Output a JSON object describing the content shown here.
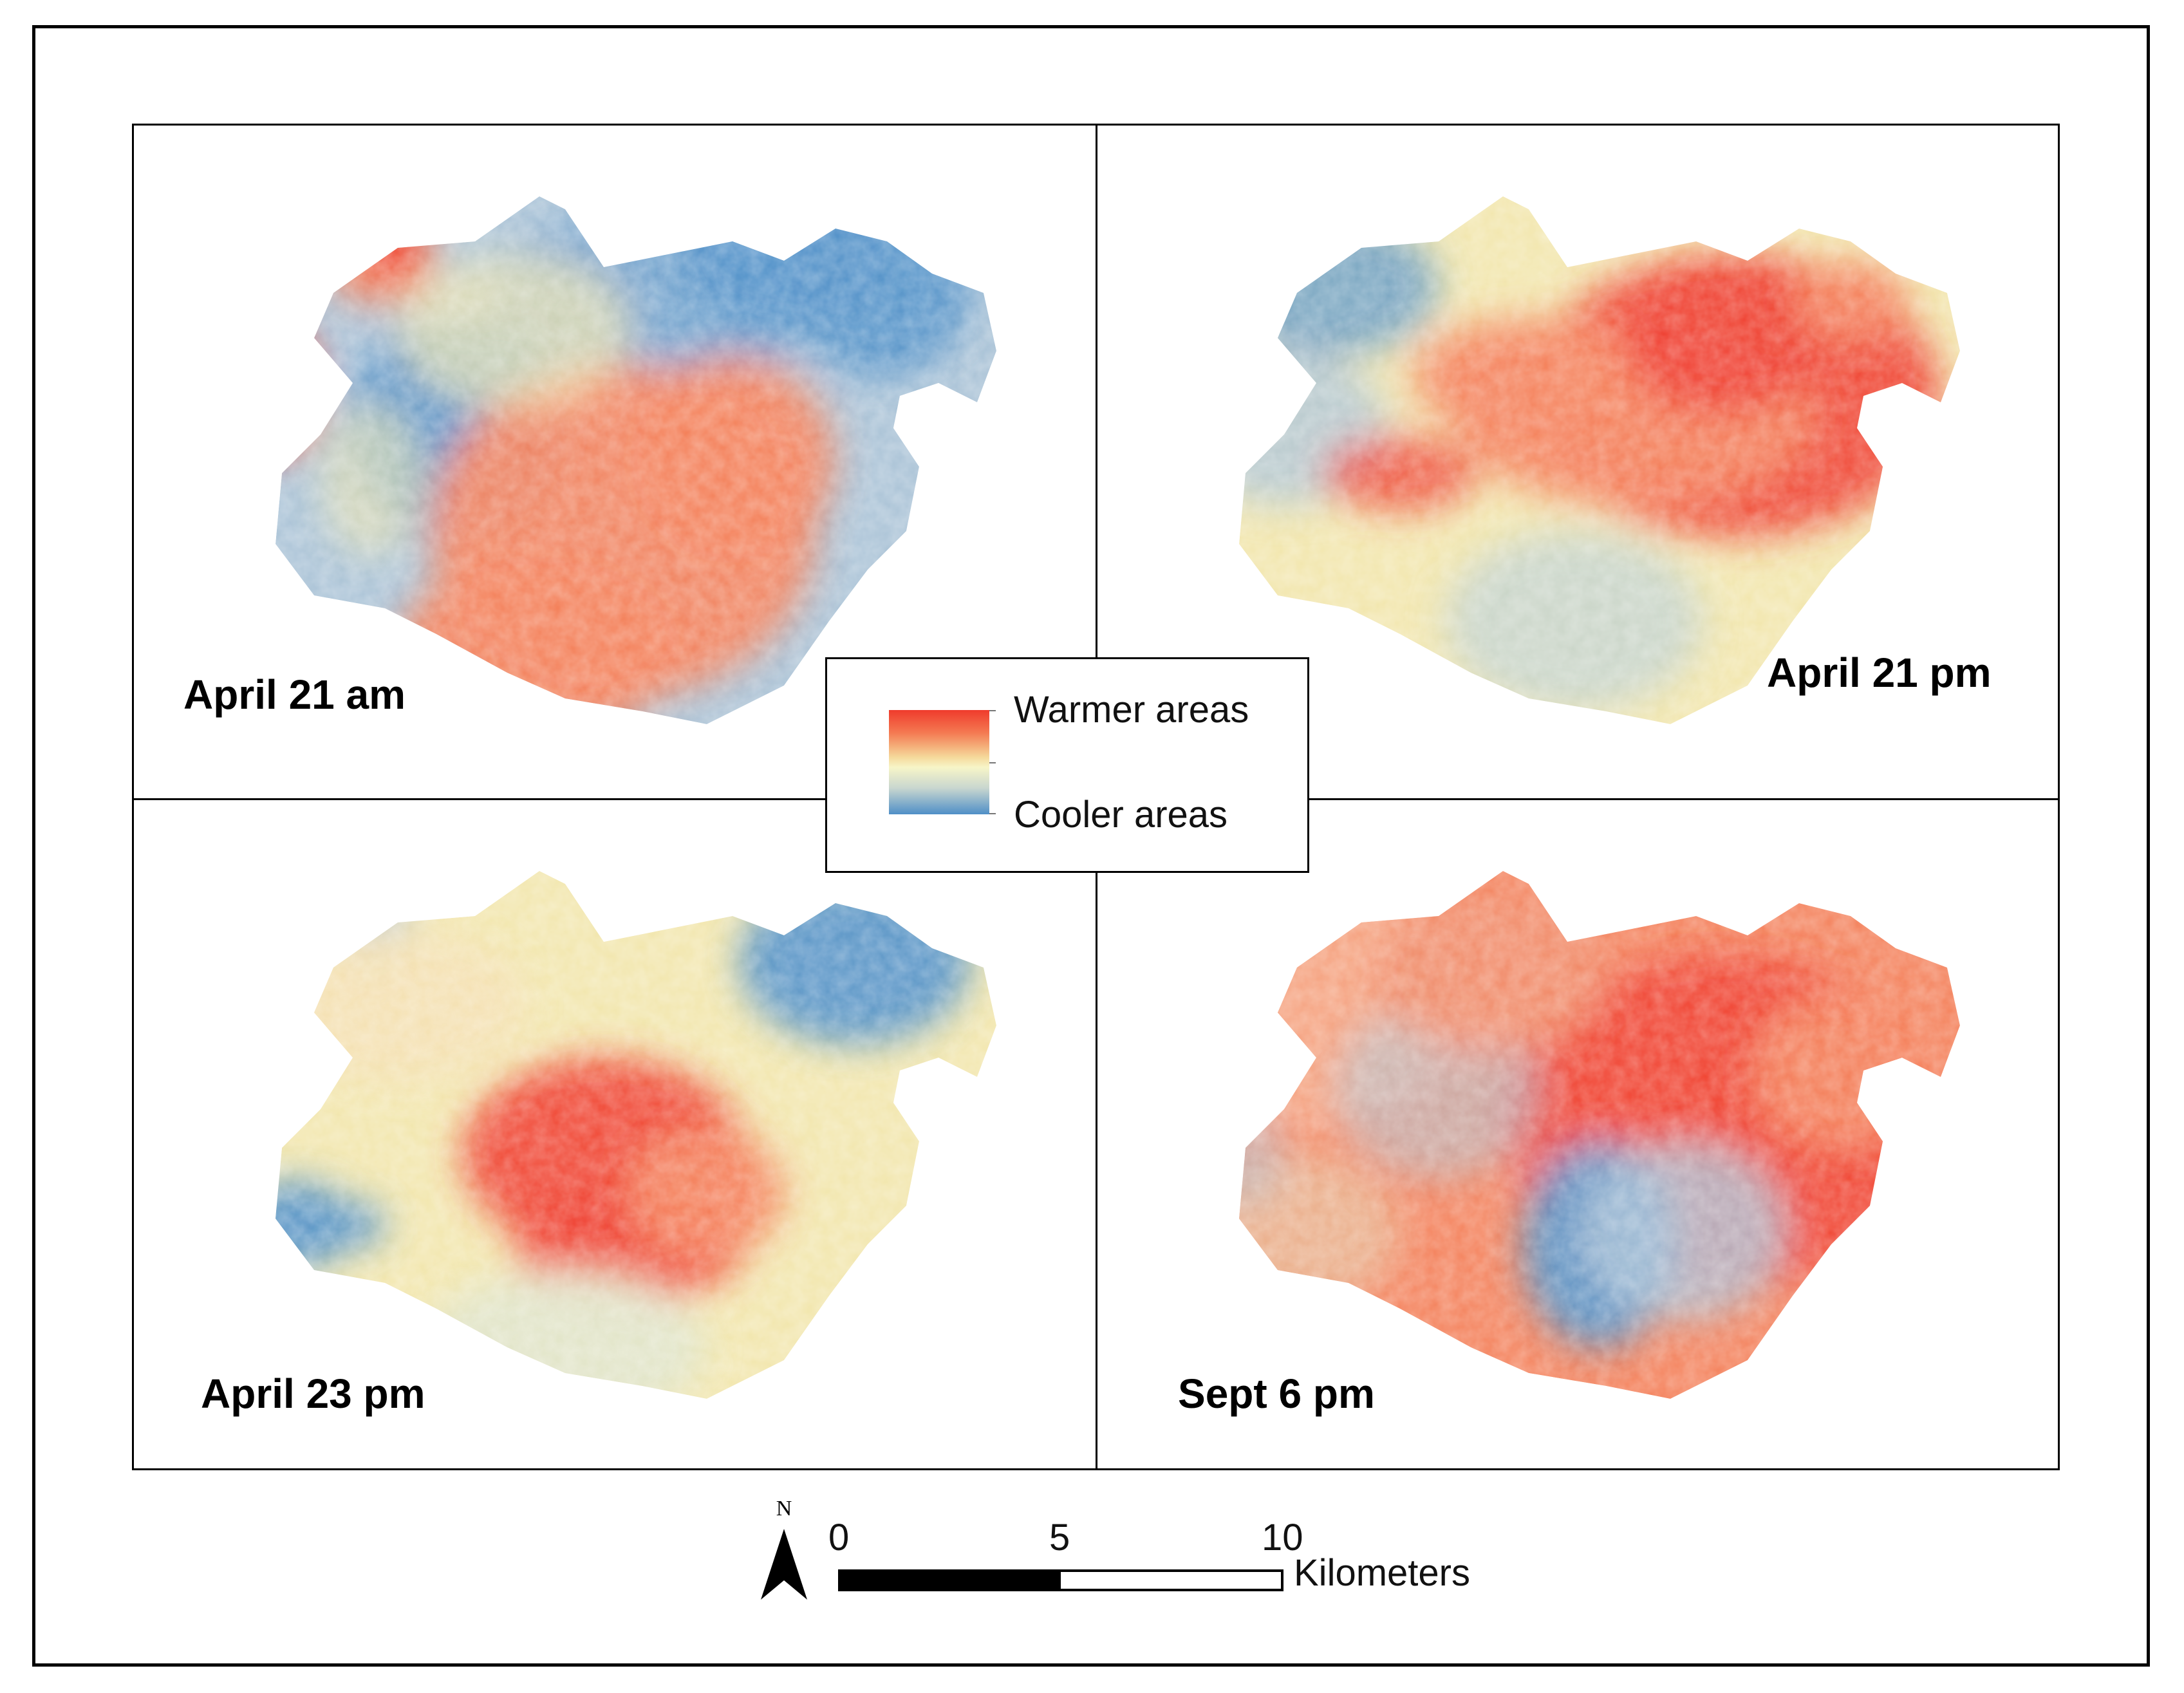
{
  "panels": [
    {
      "label": "April 21 am",
      "pattern": "morning"
    },
    {
      "label": "April 21 pm",
      "pattern": "urban-hot"
    },
    {
      "label": "April 23 pm",
      "pattern": "mixed"
    },
    {
      "label": "Sept 6 pm",
      "pattern": "widespread-hot"
    }
  ],
  "legend": {
    "warm_label": "Warmer areas",
    "cool_label": "Cooler areas",
    "warm_color": "#ef3b2c",
    "mid_color": "#f7f5c8",
    "cool_color": "#4f8fc7"
  },
  "north_arrow": {
    "label": "N",
    "icon": "north-arrow-icon"
  },
  "scale_bar": {
    "ticks": [
      "0",
      "5",
      "10"
    ],
    "unit": "Kilometers"
  }
}
